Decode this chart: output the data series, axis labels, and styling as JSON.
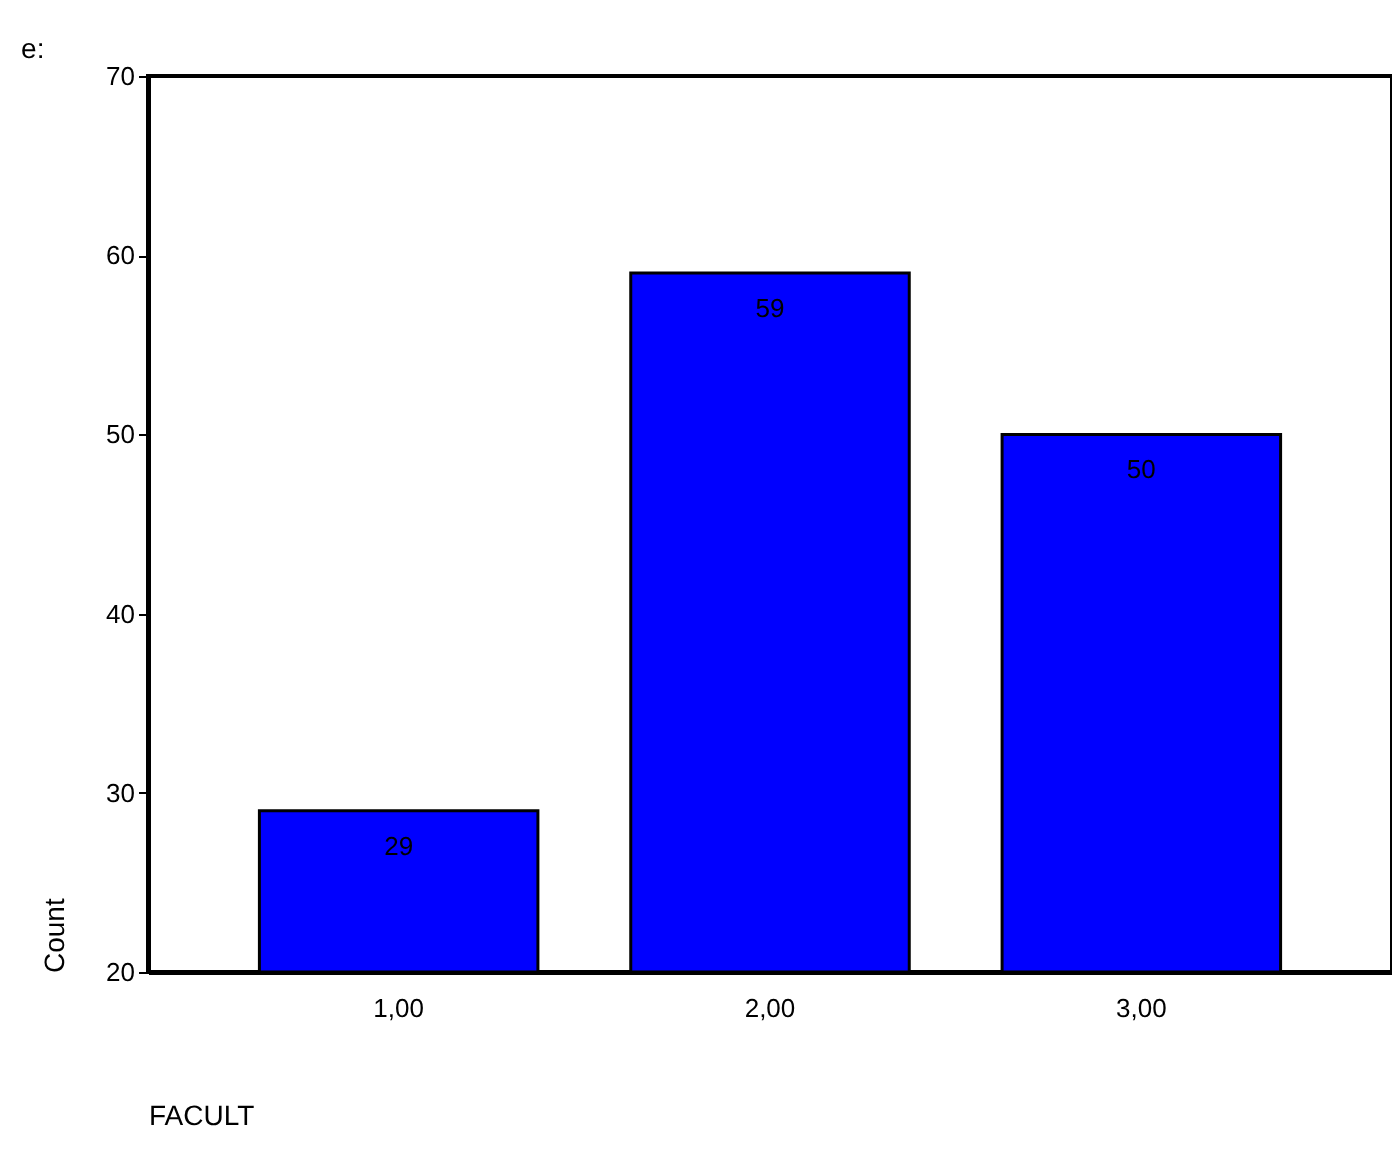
{
  "chart_data": {
    "type": "bar",
    "categories": [
      "1,00",
      "2,00",
      "3,00"
    ],
    "values": [
      29,
      59,
      50
    ],
    "color": "#0000ff",
    "ylim": [
      20,
      70
    ],
    "yticks": [
      20,
      30,
      40,
      50,
      60,
      70
    ],
    "xlabel": "FACULT",
    "ylabel": "Count",
    "data_labels": true,
    "grid": false,
    "annotations": [
      "e:"
    ]
  }
}
